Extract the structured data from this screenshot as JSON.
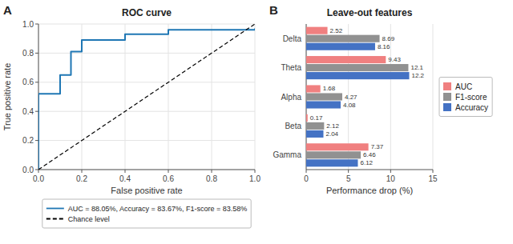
{
  "chart_data": [
    {
      "type": "line",
      "panel_label": "A",
      "title": "ROC curve",
      "x_label": "False positive rate",
      "y_label": "True positive rate",
      "series": [
        {
          "name": "AUC = 88.05%, Accuracy = 83.67%, F1-score = 83.58%",
          "color": "#1f77b4",
          "line_style": "solid",
          "x": [
            0.0,
            0.0,
            0.1,
            0.1,
            0.15,
            0.15,
            0.2,
            0.2,
            0.4,
            0.4,
            0.6,
            0.6,
            1.0,
            1.0
          ],
          "values": [
            0.0,
            0.52,
            0.52,
            0.65,
            0.65,
            0.81,
            0.81,
            0.89,
            0.89,
            0.93,
            0.93,
            0.96,
            0.96,
            0.97
          ]
        },
        {
          "name": "Chance level",
          "color": "black",
          "line_style": "dashed",
          "x": [
            0,
            1
          ],
          "values": [
            0,
            1
          ]
        }
      ],
      "xlim": [
        0,
        1
      ],
      "ylim": [
        0,
        1
      ],
      "xticks": [
        {
          "value": 0,
          "label": "0.0"
        },
        0.2,
        0.4,
        0.6,
        0.8,
        {
          "value": 1,
          "label": "1.0"
        }
      ],
      "yticks": [
        {
          "value": 0,
          "label": "0.0"
        },
        0.2,
        0.4,
        0.6,
        0.8,
        {
          "value": 1,
          "label": "1.0"
        }
      ],
      "grid": true,
      "legend": "bottom"
    },
    {
      "type": "bar",
      "orientation": "horizontal",
      "panel_label": "B",
      "title": "Leave-out features",
      "x_label": "Performance drop (%)",
      "categories": [
        "Delta",
        "Theta",
        "Alpha",
        "Beta",
        "Gamma"
      ],
      "series": [
        {
          "name": "AUC",
          "color": "#f08080",
          "values": [
            2.52,
            9.43,
            1.68,
            0.17,
            7.37
          ]
        },
        {
          "name": "F1-score",
          "color": "#919191",
          "values": [
            8.69,
            12.1,
            4.27,
            2.12,
            6.46
          ]
        },
        {
          "name": "Accuracy",
          "color": "#4472c4",
          "values": [
            8.16,
            12.2,
            4.08,
            2.04,
            6.12
          ]
        }
      ],
      "xlim": [
        0,
        15
      ],
      "xticks": [
        0,
        5,
        10,
        15
      ],
      "grid": true,
      "data_labels": true,
      "legend": "right"
    }
  ]
}
